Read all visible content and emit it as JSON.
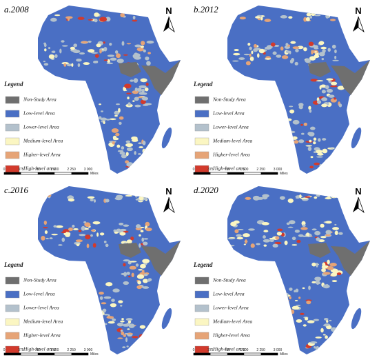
{
  "panels": [
    {
      "title": "a.2008"
    },
    {
      "title": "b.2012"
    },
    {
      "title": "c.2016"
    },
    {
      "title": "d.2020"
    }
  ],
  "north": "N",
  "legend": {
    "title": "Legend",
    "items": [
      {
        "label": "Non-Study Area",
        "color": "#6f6f6f"
      },
      {
        "label": "Low-level Area",
        "color": "#4a6fc4"
      },
      {
        "label": "Lower-level Area",
        "color": "#b3c1cc"
      },
      {
        "label": "Medium-level Area",
        "color": "#fbf6c2"
      },
      {
        "label": "Higher-level Area",
        "color": "#e6a477"
      },
      {
        "label": "High-level area",
        "color": "#d23a2c"
      }
    ]
  },
  "scale": {
    "labels": [
      "0",
      "375",
      "750",
      "1 500",
      "2 250",
      "3 000"
    ],
    "unit": "Miles"
  }
}
